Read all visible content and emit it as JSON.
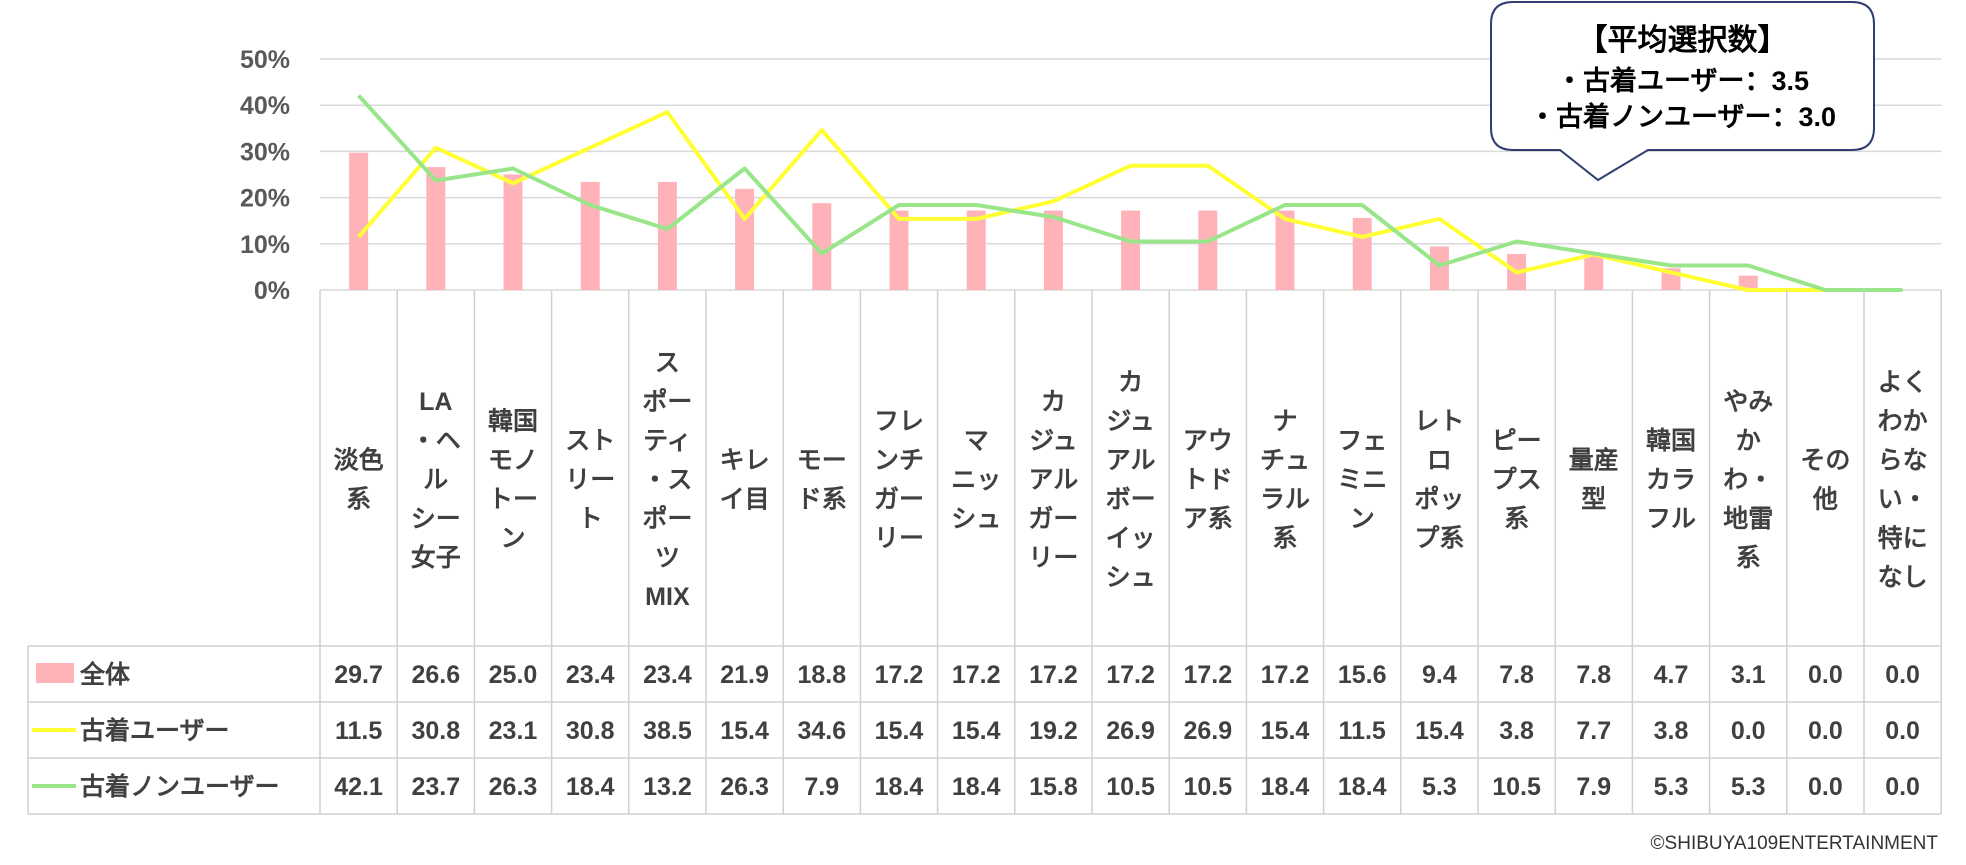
{
  "chart_data": {
    "type": "bar",
    "categories": [
      [
        "淡色",
        "系"
      ],
      [
        "LA",
        "・ヘ",
        "ル",
        "シー",
        "女子"
      ],
      [
        "韓国",
        "モノ",
        "トー",
        "ン"
      ],
      [
        "スト",
        "リー",
        "ト"
      ],
      [
        "ス",
        "ポー",
        "ティ",
        "・ス",
        "ポー",
        "ツ",
        "MIX"
      ],
      [
        "キレ",
        "イ目"
      ],
      [
        "モー",
        "ド系"
      ],
      [
        "フレ",
        "ンチ",
        "ガー",
        "リー"
      ],
      [
        "マ",
        "ニッ",
        "シュ"
      ],
      [
        "カ",
        "ジュ",
        "アル",
        "ガー",
        "リー"
      ],
      [
        "カ",
        "ジュ",
        "アル",
        "ボー",
        "イッ",
        "シュ"
      ],
      [
        "アウ",
        "トド",
        "ア系"
      ],
      [
        "ナ",
        "チュ",
        "ラル",
        "系"
      ],
      [
        "フェ",
        "ミニ",
        "ン"
      ],
      [
        "レト",
        "ロ",
        "ポッ",
        "プ系"
      ],
      [
        "ピー",
        "プス",
        "系"
      ],
      [
        "量産",
        "型"
      ],
      [
        "韓国",
        "カラ",
        "フル"
      ],
      [
        "やみ",
        "か",
        "わ・",
        "地雷",
        "系"
      ],
      [
        "その",
        "他"
      ],
      [
        "よく",
        "わか",
        "らな",
        "い・",
        "特に",
        "なし"
      ]
    ],
    "series": [
      {
        "name": "全体",
        "kind": "bar",
        "color": "#ffb3b8",
        "values": [
          29.7,
          26.6,
          25.0,
          23.4,
          23.4,
          21.9,
          18.8,
          17.2,
          17.2,
          17.2,
          17.2,
          17.2,
          17.2,
          15.6,
          9.4,
          7.8,
          7.8,
          4.7,
          3.1,
          0.0,
          0.0
        ],
        "labels": [
          "29.7",
          "26.6",
          "25.0",
          "23.4",
          "23.4",
          "21.9",
          "18.8",
          "17.2",
          "17.2",
          "17.2",
          "17.2",
          "17.2",
          "17.2",
          "15.6",
          "9.4",
          "7.8",
          "7.8",
          "4.7",
          "3.1",
          "0.0",
          "0.0"
        ]
      },
      {
        "name": "古着ユーザー",
        "kind": "line",
        "color": "#ffff33",
        "values": [
          11.5,
          30.8,
          23.1,
          30.8,
          38.5,
          15.4,
          34.6,
          15.4,
          15.4,
          19.2,
          26.9,
          26.9,
          15.4,
          11.5,
          15.4,
          3.8,
          7.7,
          3.8,
          0.0,
          0.0,
          0.0
        ],
        "labels": [
          "11.5",
          "30.8",
          "23.1",
          "30.8",
          "38.5",
          "15.4",
          "34.6",
          "15.4",
          "15.4",
          "19.2",
          "26.9",
          "26.9",
          "15.4",
          "11.5",
          "15.4",
          "3.8",
          "7.7",
          "3.8",
          "0.0",
          "0.0",
          "0.0"
        ]
      },
      {
        "name": "古着ノンユーザー",
        "kind": "line",
        "color": "#99e68a",
        "values": [
          42.1,
          23.7,
          26.3,
          18.4,
          13.2,
          26.3,
          7.9,
          18.4,
          18.4,
          15.8,
          10.5,
          10.5,
          18.4,
          18.4,
          5.3,
          10.5,
          7.9,
          5.3,
          5.3,
          0.0,
          0.0
        ],
        "labels": [
          "42.1",
          "23.7",
          "26.3",
          "18.4",
          "13.2",
          "26.3",
          "7.9",
          "18.4",
          "18.4",
          "15.8",
          "10.5",
          "10.5",
          "18.4",
          "18.4",
          "5.3",
          "10.5",
          "7.9",
          "5.3",
          "5.3",
          "0.0",
          "0.0"
        ]
      }
    ],
    "yticks": [
      "0%",
      "10%",
      "20%",
      "30%",
      "40%",
      "50%"
    ],
    "ylim": [
      0,
      50
    ],
    "grid": true,
    "legend": "data-table",
    "annotation": {
      "title": "【平均選択数】",
      "lines": [
        "・古着ユーザー：3.5",
        "・古着ノンユーザー：3.0"
      ]
    },
    "colors": {
      "grid": "#d9d9d9",
      "table_border": "#d0d0d0",
      "callout_border": "#2f3f6f"
    }
  },
  "footer": {
    "copyright": "©SHIBUYA109ENTERTAINMENT"
  }
}
